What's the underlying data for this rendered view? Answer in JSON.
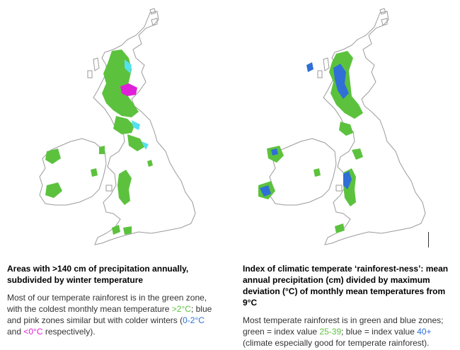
{
  "colors": {
    "green": "#5cc23e",
    "blue": "#2f6fd6",
    "cyan": "#55e0f0",
    "pink": "#e020d8",
    "coastline": "#9a9a9a"
  },
  "left_panel": {
    "title": "Areas with >140 cm of precipitation annually, subdivided by winter temperature",
    "body_1": "Most of our temperate rainforest is in the green zone, with the coldest monthly mean temperature ",
    "green_value": ">2°C",
    "body_2": "; blue and pink zones similar but with colder winters (",
    "blue_value": "0-2°C",
    "body_3": " and ",
    "pink_value": "<0°C",
    "body_4": " respectively)."
  },
  "right_panel": {
    "title": "Index of climatic temperate ‘rainforest-ness’: mean annual precipitation (cm) divided by maximum deviation (°C) of monthly mean temperatures from 9°C",
    "body_1": "Most temperate rainforest is in green and blue zones; green = index value ",
    "green_value": "25-39",
    "body_2": "; blue = index value ",
    "blue_value": "40+",
    "body_3": " (climate especially good for temperate rainforest)."
  }
}
